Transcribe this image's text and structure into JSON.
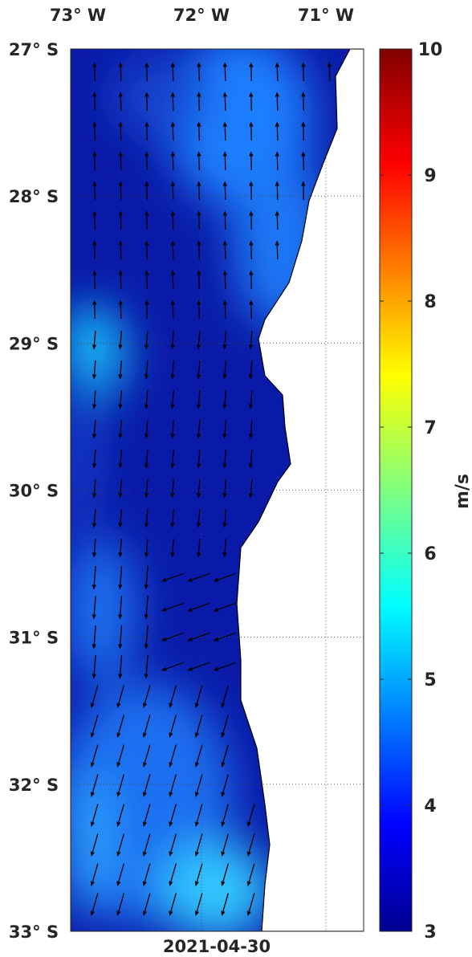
{
  "map": {
    "lon_labels": [
      "73° W",
      "72° W",
      "71° W"
    ],
    "lat_labels": [
      "27° S",
      "28° S",
      "29° S",
      "30° S",
      "31° S",
      "32° S",
      "33° S"
    ],
    "date": "2021-04-30",
    "colorbar": {
      "range": [
        3,
        10
      ],
      "ticks": [
        3,
        4,
        5,
        6,
        7,
        8,
        9,
        10
      ],
      "label": "m/s"
    }
  }
}
